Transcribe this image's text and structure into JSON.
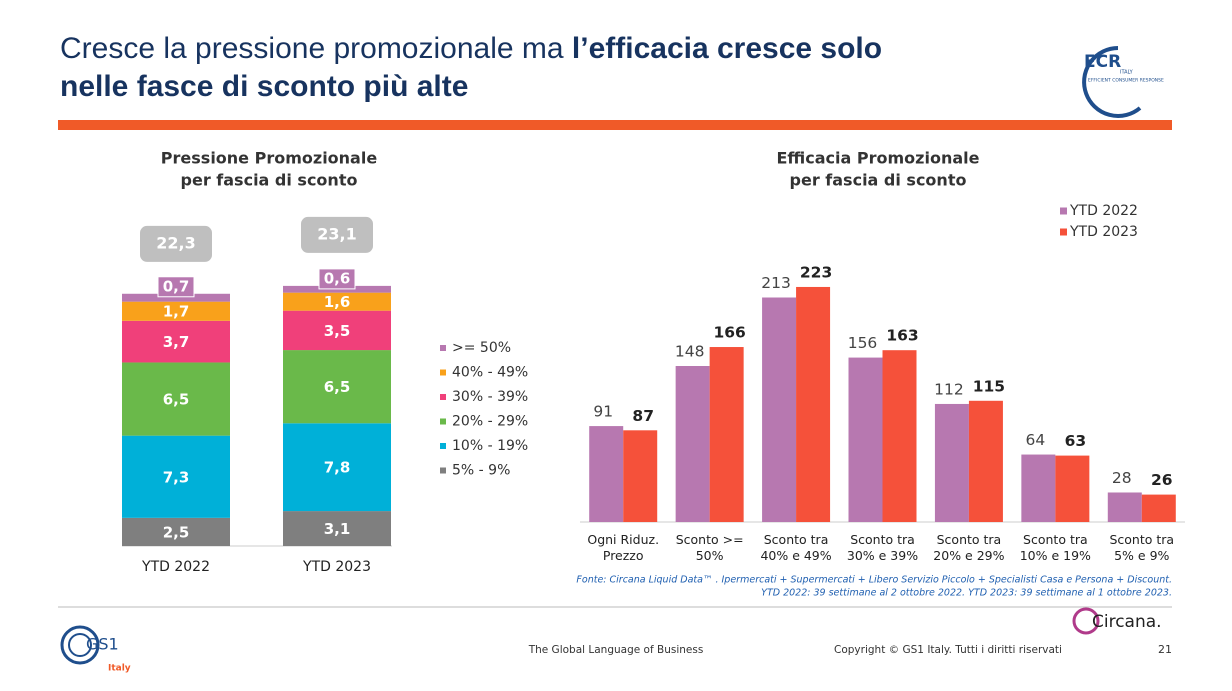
{
  "header": {
    "title_regular": "Cresce la pressione promozionale ma ",
    "title_bold_1": "l’efficacia cresce solo",
    "title_bold_2": "nelle fasce di sconto più alte"
  },
  "logos": {
    "ecr": "ECR",
    "ecr_country": "ITALY",
    "ecr_tagline": "EFFICIENT CONSUMER RESPONSE",
    "gs1": "GS1",
    "gs1_country": "Italy",
    "circana": "Circana."
  },
  "chart_data": [
    {
      "type": "bar",
      "stacked": true,
      "title": [
        "Pressione Promozionale",
        "per fascia di sconto"
      ],
      "categories": [
        "YTD 2022",
        "YTD 2023"
      ],
      "series": [
        {
          "name": "5% - 9%",
          "color": "#7f7f7f",
          "values": [
            2.5,
            3.1
          ],
          "value_labels": [
            "2,5",
            "3,1"
          ]
        },
        {
          "name": "10% - 19%",
          "color": "#00b0d8",
          "values": [
            7.3,
            7.8
          ],
          "value_labels": [
            "7,3",
            "7,8"
          ]
        },
        {
          "name": "20% - 29%",
          "color": "#6ab94a",
          "values": [
            6.5,
            6.5
          ],
          "value_labels": [
            "6,5",
            "6,5"
          ]
        },
        {
          "name": "30% - 39%",
          "color": "#f0407a",
          "values": [
            3.7,
            3.5
          ],
          "value_labels": [
            "3,7",
            "3,5"
          ]
        },
        {
          "name": "40% - 49%",
          "color": "#f9a11b",
          "values": [
            1.7,
            1.6
          ],
          "value_labels": [
            "1,7",
            "1,6"
          ]
        },
        {
          "name": ">= 50%",
          "color": "#b778b0",
          "values": [
            0.7,
            0.6
          ],
          "value_labels": [
            "0,7",
            "0,6"
          ]
        }
      ],
      "totals": [
        22.3,
        23.1
      ],
      "total_labels": [
        "22,3",
        "23,1"
      ]
    },
    {
      "type": "bar",
      "stacked": false,
      "title": [
        "Efficacia Promozionale",
        "per fascia di sconto"
      ],
      "categories": [
        "Ogni Riduz. Prezzo",
        "Sconto >= 50%",
        "Sconto tra 40% e 49%",
        "Sconto tra 30% e 39%",
        "Sconto tra 20% e 29%",
        "Sconto tra 10% e 19%",
        "Sconto tra 5% e 9%"
      ],
      "series": [
        {
          "name": "YTD 2022",
          "color": "#b778b0",
          "values": [
            91,
            148,
            213,
            156,
            112,
            64,
            28
          ]
        },
        {
          "name": "YTD 2023",
          "color": "#f5513a",
          "values": [
            87,
            166,
            223,
            163,
            115,
            63,
            26
          ]
        }
      ],
      "legend": "upper right"
    }
  ],
  "source": [
    "Fonte: Circana Liquid Data™ . Ipermercati + Supermercati + Libero Servizio Piccolo + Specialisti Casa e Persona + Discount.",
    "YTD 2022: 39 settimane al 2 ottobre 2022. YTD 2023: 39 settimane al 1 ottobre 2023."
  ],
  "footer": {
    "tagline": "The Global Language of Business",
    "copyright": "Copyright © GS1 Italy. Tutti i diritti riservati",
    "page": "21"
  }
}
